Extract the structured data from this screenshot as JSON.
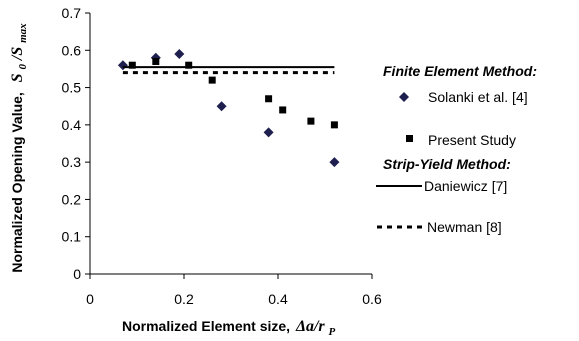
{
  "chart_data": {
    "type": "scatter",
    "xlabel": "Normalized Element size,",
    "xlabel_math": "Δa/r",
    "xlabel_sub": "P",
    "ylabel": "Normalized Opening Value,",
    "ylabel_math": "S",
    "ylabel_sub": "0",
    "ylabel_math2": "/S",
    "ylabel_sub2": "max",
    "xlim": [
      0,
      0.6
    ],
    "ylim": [
      0,
      0.7
    ],
    "xticks": [
      "0",
      "0.2",
      "0.4",
      "0.6"
    ],
    "xtick_values": [
      0,
      0.2,
      0.4,
      0.6
    ],
    "yticks": [
      "0",
      "0.1",
      "0.2",
      "0.3",
      "0.4",
      "0.5",
      "0.6",
      "0.7"
    ],
    "ytick_values": [
      0,
      0.1,
      0.2,
      0.3,
      0.4,
      0.5,
      0.6,
      0.7
    ],
    "grid": false,
    "legend_position": "right",
    "legend_groups": [
      "Finite Element Method:",
      "Strip-Yield Method:"
    ],
    "series": [
      {
        "name": "Solanki et al. [4]",
        "marker": "diamond",
        "color": "#1f1f4f",
        "x": [
          0.07,
          0.14,
          0.19,
          0.28,
          0.38,
          0.52
        ],
        "y": [
          0.56,
          0.58,
          0.59,
          0.45,
          0.38,
          0.3
        ]
      },
      {
        "name": "Present Study",
        "marker": "square",
        "color": "#000000",
        "x": [
          0.09,
          0.14,
          0.21,
          0.26,
          0.38,
          0.41,
          0.47,
          0.52
        ],
        "y": [
          0.56,
          0.57,
          0.56,
          0.52,
          0.47,
          0.44,
          0.41,
          0.4
        ]
      },
      {
        "name": "Daniewicz [7]",
        "line": "solid",
        "color": "#000000",
        "x": [
          0.07,
          0.52
        ],
        "y": [
          0.555,
          0.555
        ]
      },
      {
        "name": "Newman [8]",
        "line": "dotted",
        "color": "#000000",
        "x": [
          0.07,
          0.52
        ],
        "y": [
          0.54,
          0.54
        ]
      }
    ]
  }
}
